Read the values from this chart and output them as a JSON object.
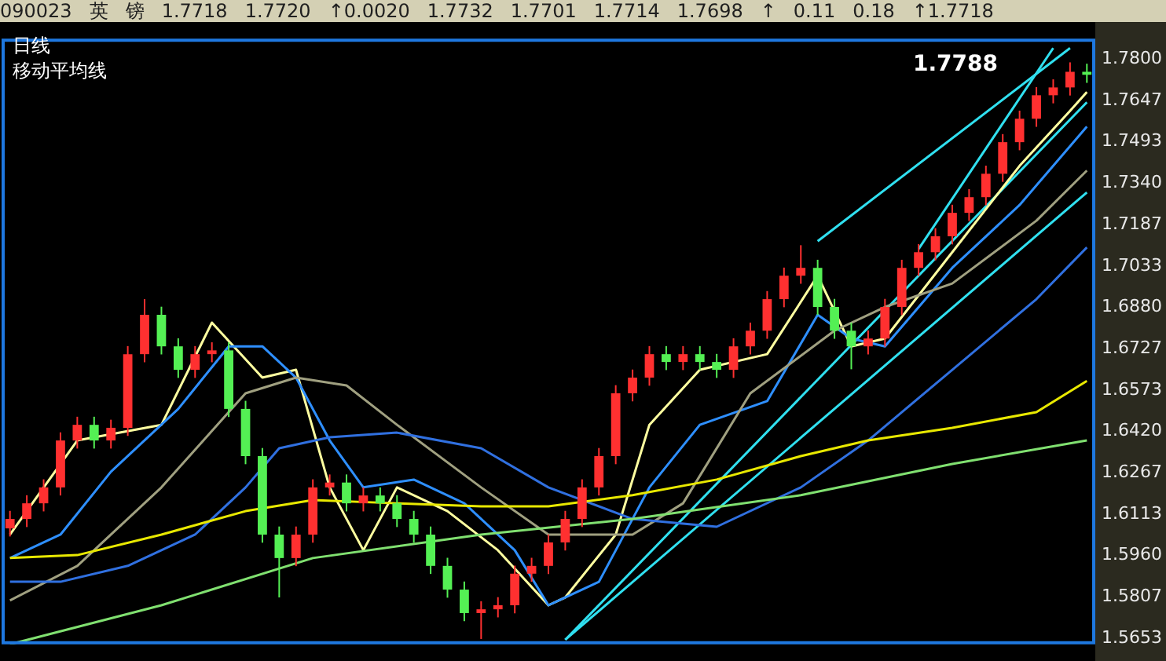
{
  "chart_data": {
    "type": "candlestick",
    "title": "日线",
    "subtitle": "移动平均线",
    "annotations": [
      "090023",
      "英",
      "镑",
      "1.7718",
      "1.7720",
      "↑0.0020",
      "1.7732",
      "1.7701",
      "1.7714",
      "1.7698",
      "↑",
      "0.11",
      "0.18",
      "↑1.7718",
      "1.7788"
    ],
    "categories": [
      null,
      null,
      null,
      null,
      null,
      null,
      null,
      null,
      null,
      null,
      null,
      null,
      null,
      null,
      null,
      null,
      null,
      null,
      null,
      null,
      null,
      null,
      null,
      null,
      null,
      null,
      null,
      null,
      null,
      null,
      null,
      null,
      null,
      null,
      null,
      null,
      null,
      null,
      null,
      null,
      null,
      null,
      null,
      null,
      null,
      null,
      null,
      null,
      null,
      null,
      null,
      null,
      null,
      null,
      null,
      null,
      null,
      null,
      null,
      null,
      null,
      null,
      null,
      null,
      null
    ],
    "ohlc": [
      [
        1.606,
        1.6125,
        1.603,
        1.6095
      ],
      [
        1.6095,
        1.6183,
        1.6065,
        1.6153
      ],
      [
        1.6153,
        1.6242,
        1.6123,
        1.6212
      ],
      [
        1.6212,
        1.6416,
        1.6182,
        1.6386
      ],
      [
        1.6386,
        1.6474,
        1.6356,
        1.6444
      ],
      [
        1.6444,
        1.6474,
        1.6356,
        1.6386
      ],
      [
        1.6386,
        1.6463,
        1.6356,
        1.6433
      ],
      [
        1.6433,
        1.6736,
        1.6403,
        1.6706
      ],
      [
        1.6706,
        1.691,
        1.6676,
        1.6852
      ],
      [
        1.6852,
        1.6882,
        1.6705,
        1.6735
      ],
      [
        1.6735,
        1.6765,
        1.6618,
        1.6648
      ],
      [
        1.6648,
        1.6736,
        1.6618,
        1.6706
      ],
      [
        1.6706,
        1.675,
        1.6676,
        1.672
      ],
      [
        1.672,
        1.675,
        1.6473,
        1.6503
      ],
      [
        1.6503,
        1.6533,
        1.6298,
        1.6328
      ],
      [
        1.6328,
        1.6358,
        1.6007,
        1.6037
      ],
      [
        1.6037,
        1.6067,
        1.5804,
        1.595
      ],
      [
        1.595,
        1.6067,
        1.592,
        1.6037
      ],
      [
        1.6037,
        1.6242,
        1.6007,
        1.6212
      ],
      [
        1.6212,
        1.626,
        1.6182,
        1.623
      ],
      [
        1.623,
        1.626,
        1.6123,
        1.6153
      ],
      [
        1.6153,
        1.6212,
        1.6123,
        1.6182
      ],
      [
        1.6182,
        1.6212,
        1.6123,
        1.6153
      ],
      [
        1.6153,
        1.6183,
        1.6065,
        1.6095
      ],
      [
        1.6095,
        1.6125,
        1.6007,
        1.6037
      ],
      [
        1.6037,
        1.6067,
        1.5891,
        1.5921
      ],
      [
        1.5921,
        1.5951,
        1.5803,
        1.5833
      ],
      [
        1.5833,
        1.5863,
        1.5716,
        1.5746
      ],
      [
        1.5746,
        1.579,
        1.565,
        1.576
      ],
      [
        1.576,
        1.5805,
        1.573,
        1.5775
      ],
      [
        1.5775,
        1.5922,
        1.5745,
        1.5892
      ],
      [
        1.5892,
        1.5951,
        1.5862,
        1.5921
      ],
      [
        1.5921,
        1.6038,
        1.5891,
        1.6008
      ],
      [
        1.6008,
        1.6125,
        1.5978,
        1.6095
      ],
      [
        1.6095,
        1.6242,
        1.6065,
        1.6212
      ],
      [
        1.6212,
        1.6358,
        1.6182,
        1.6328
      ],
      [
        1.6328,
        1.6591,
        1.6298,
        1.6561
      ],
      [
        1.6561,
        1.6649,
        1.6531,
        1.6619
      ],
      [
        1.6619,
        1.6736,
        1.6589,
        1.6706
      ],
      [
        1.6706,
        1.6736,
        1.6647,
        1.6677
      ],
      [
        1.6677,
        1.6736,
        1.6647,
        1.6706
      ],
      [
        1.6706,
        1.6736,
        1.6647,
        1.6677
      ],
      [
        1.6677,
        1.6707,
        1.6618,
        1.6648
      ],
      [
        1.6648,
        1.6765,
        1.6618,
        1.6735
      ],
      [
        1.6735,
        1.6823,
        1.6705,
        1.6793
      ],
      [
        1.6793,
        1.694,
        1.6763,
        1.691
      ],
      [
        1.691,
        1.7027,
        1.688,
        1.6997
      ],
      [
        1.6997,
        1.711,
        1.6967,
        1.7026
      ],
      [
        1.7026,
        1.7056,
        1.6851,
        1.6881
      ],
      [
        1.6881,
        1.6911,
        1.6763,
        1.6793
      ],
      [
        1.6793,
        1.6823,
        1.665,
        1.6735
      ],
      [
        1.6735,
        1.6794,
        1.6705,
        1.6764
      ],
      [
        1.6764,
        1.6911,
        1.6734,
        1.6881
      ],
      [
        1.6881,
        1.7056,
        1.6851,
        1.7026
      ],
      [
        1.7026,
        1.7114,
        1.6996,
        1.7084
      ],
      [
        1.7084,
        1.7173,
        1.7054,
        1.7143
      ],
      [
        1.7143,
        1.726,
        1.7113,
        1.723
      ],
      [
        1.723,
        1.7318,
        1.72,
        1.7288
      ],
      [
        1.7288,
        1.7405,
        1.7258,
        1.7375
      ],
      [
        1.7375,
        1.7522,
        1.7345,
        1.7492
      ],
      [
        1.7492,
        1.7609,
        1.7462,
        1.7579
      ],
      [
        1.7579,
        1.7696,
        1.7549,
        1.7666
      ],
      [
        1.7666,
        1.7725,
        1.7636,
        1.7695
      ],
      [
        1.7695,
        1.7788,
        1.7665,
        1.7753
      ],
      [
        1.7753,
        1.7783,
        1.7712,
        1.7742
      ]
    ],
    "colors": [
      "#ff3030",
      "#ff3030",
      "#ff3030",
      "#ff3030",
      "#ff3030",
      "#54f054",
      "#ff3030",
      "#ff3030",
      "#ff3030",
      "#54f054",
      "#54f054",
      "#ff3030",
      "#ff3030",
      "#54f054",
      "#54f054",
      "#54f054",
      "#54f054",
      "#ff3030",
      "#ff3030",
      "#ff3030",
      "#54f054",
      "#ff3030",
      "#54f054",
      "#54f054",
      "#54f054",
      "#54f054",
      "#54f054",
      "#54f054",
      "#ff3030",
      "#ff3030",
      "#ff3030",
      "#ff3030",
      "#ff3030",
      "#ff3030",
      "#ff3030",
      "#ff3030",
      "#ff3030",
      "#ff3030",
      "#ff3030",
      "#54f054",
      "#ff3030",
      "#54f054",
      "#54f054",
      "#ff3030",
      "#ff3030",
      "#ff3030",
      "#ff3030",
      "#ff3030",
      "#54f054",
      "#54f054",
      "#54f054",
      "#ff3030",
      "#ff3030",
      "#ff3030",
      "#ff3030",
      "#ff3030",
      "#ff3030",
      "#ff3030",
      "#ff3030",
      "#ff3030",
      "#ff3030",
      "#ff3030",
      "#ff3030",
      "#ff3030",
      "#54f054"
    ],
    "series": [
      {
        "type": "line",
        "color": "#80e070",
        "values": [
          1.563,
          null,
          null,
          null,
          null,
          null,
          null,
          null,
          null,
          1.5775,
          null,
          null,
          null,
          null,
          null,
          null,
          null,
          null,
          1.595,
          null,
          null,
          null,
          null,
          null,
          null,
          null,
          null,
          null,
          1.6037,
          null,
          null,
          null,
          null,
          null,
          null,
          null,
          null,
          1.6095,
          null,
          null,
          null,
          null,
          null,
          null,
          null,
          null,
          null,
          1.6183,
          null,
          null,
          null,
          null,
          null,
          null,
          null,
          null,
          1.6299,
          null,
          null,
          null,
          null,
          null,
          null,
          null,
          1.6386
        ]
      },
      {
        "type": "line",
        "color": "#e8e800",
        "values": [
          1.595,
          null,
          null,
          null,
          1.5961,
          null,
          null,
          null,
          null,
          1.6037,
          null,
          null,
          null,
          null,
          1.6124,
          null,
          null,
          null,
          1.6165,
          null,
          null,
          null,
          null,
          1.6153,
          null,
          null,
          null,
          null,
          1.6142,
          null,
          null,
          null,
          1.6142,
          null,
          null,
          null,
          null,
          1.6183,
          null,
          null,
          null,
          null,
          1.6241,
          null,
          null,
          null,
          null,
          1.6328,
          null,
          null,
          null,
          1.6386,
          null,
          null,
          null,
          null,
          1.6433,
          null,
          null,
          null,
          null,
          1.6491,
          null,
          null,
          1.6607
        ]
      },
      {
        "type": "line",
        "color": "#3070e0",
        "values": [
          1.5862,
          null,
          null,
          1.5862,
          null,
          null,
          null,
          1.5921,
          null,
          null,
          null,
          1.6037,
          null,
          null,
          1.6212,
          null,
          1.6357,
          null,
          null,
          1.6398,
          null,
          null,
          null,
          1.6415,
          null,
          null,
          null,
          null,
          1.6357,
          null,
          null,
          null,
          1.6212,
          null,
          null,
          null,
          null,
          1.6095,
          null,
          null,
          null,
          null,
          1.6066,
          null,
          null,
          null,
          null,
          1.6212,
          null,
          null,
          null,
          1.6386,
          null,
          null,
          null,
          null,
          1.6648,
          null,
          null,
          null,
          null,
          1.691,
          null,
          null,
          1.7102
        ]
      },
      {
        "type": "line",
        "color": "#a0a080",
        "values": [
          1.5793,
          null,
          null,
          null,
          1.5921,
          null,
          null,
          null,
          null,
          1.6212,
          null,
          null,
          null,
          null,
          1.6561,
          null,
          null,
          1.6619,
          null,
          null,
          1.659,
          null,
          null,
          1.6444,
          null,
          null,
          null,
          null,
          1.6212,
          null,
          null,
          null,
          1.6037,
          null,
          null,
          null,
          null,
          1.6037,
          null,
          null,
          1.6153,
          null,
          null,
          null,
          1.6561,
          null,
          null,
          null,
          null,
          1.6793,
          null,
          null,
          1.6881,
          null,
          null,
          null,
          1.6968,
          null,
          null,
          null,
          null,
          1.7201,
          null,
          null,
          1.7387
        ]
      },
      {
        "type": "line",
        "color": "#2e8fff",
        "values": [
          1.595,
          null,
          null,
          1.6037,
          null,
          null,
          1.627,
          null,
          null,
          null,
          1.6503,
          null,
          null,
          1.6735,
          null,
          1.6735,
          null,
          1.6619,
          null,
          1.6386,
          null,
          1.6212,
          null,
          null,
          1.6241,
          null,
          null,
          1.6153,
          null,
          null,
          1.5979,
          null,
          1.5775,
          null,
          null,
          1.5862,
          null,
          null,
          1.6212,
          null,
          null,
          1.6444,
          null,
          null,
          null,
          1.6532,
          null,
          null,
          1.6852,
          null,
          1.6764,
          null,
          1.6735,
          null,
          null,
          null,
          1.7026,
          null,
          null,
          null,
          1.7259,
          null,
          null,
          null,
          1.755
        ]
      },
      {
        "type": "line",
        "color": "#ffffa0",
        "values": [
          1.6037,
          null,
          null,
          null,
          1.6386,
          null,
          null,
          null,
          null,
          1.6444,
          null,
          null,
          1.6823,
          null,
          null,
          1.6619,
          null,
          1.6648,
          null,
          1.6212,
          null,
          1.5979,
          null,
          1.6212,
          null,
          null,
          1.6124,
          null,
          null,
          1.5979,
          null,
          null,
          1.5775,
          1.5804,
          null,
          null,
          1.6037,
          null,
          1.6444,
          null,
          null,
          1.6648,
          null,
          null,
          null,
          1.6706,
          null,
          null,
          1.6997,
          null,
          1.6735,
          null,
          1.6764,
          null,
          null,
          null,
          1.7084,
          null,
          null,
          null,
          1.7404,
          null,
          null,
          1.7608,
          1.7678
        ]
      },
      {
        "type": "line",
        "color": "#30e0f0",
        "values": [
          null,
          null,
          null,
          null,
          null,
          null,
          null,
          null,
          null,
          null,
          null,
          null,
          null,
          null,
          null,
          null,
          null,
          null,
          null,
          null,
          null,
          null,
          null,
          null,
          null,
          null,
          null,
          null,
          null,
          null,
          null,
          null,
          null,
          1.5647,
          null,
          null,
          null,
          null,
          null,
          null,
          null,
          null,
          null,
          null,
          null,
          null,
          null,
          null,
          null,
          null,
          null,
          null,
          null,
          null,
          null,
          null,
          null,
          null,
          null,
          null,
          null,
          null,
          null,
          null,
          1.7306
        ]
      },
      {
        "type": "line",
        "color": "#30e0f0",
        "values": [
          null,
          null,
          null,
          null,
          null,
          null,
          null,
          null,
          null,
          null,
          null,
          null,
          null,
          null,
          null,
          null,
          null,
          null,
          null,
          null,
          null,
          null,
          null,
          null,
          null,
          null,
          null,
          null,
          null,
          null,
          null,
          null,
          null,
          1.5647,
          null,
          null,
          null,
          null,
          null,
          null,
          null,
          null,
          null,
          null,
          null,
          null,
          null,
          null,
          null,
          null,
          null,
          null,
          null,
          null,
          null,
          null,
          null,
          null,
          null,
          null,
          null,
          null,
          null,
          null,
          1.764
        ]
      },
      {
        "type": "line",
        "color": "#30e0f0",
        "values": [
          null,
          null,
          null,
          null,
          null,
          null,
          null,
          null,
          null,
          null,
          null,
          null,
          null,
          null,
          null,
          null,
          null,
          null,
          null,
          null,
          null,
          null,
          null,
          null,
          null,
          null,
          null,
          null,
          null,
          null,
          null,
          null,
          null,
          null,
          null,
          null,
          null,
          null,
          null,
          null,
          null,
          null,
          null,
          null,
          null,
          null,
          null,
          null,
          1.7125,
          null,
          null,
          null,
          null,
          null,
          null,
          null,
          null,
          null,
          null,
          null,
          null,
          null,
          null,
          1.7841,
          null
        ]
      },
      {
        "type": "line",
        "color": "#30e0f0",
        "values": [
          null,
          null,
          null,
          null,
          null,
          null,
          null,
          null,
          null,
          null,
          null,
          null,
          null,
          null,
          null,
          null,
          null,
          null,
          null,
          null,
          null,
          null,
          null,
          null,
          null,
          null,
          null,
          null,
          null,
          null,
          null,
          null,
          null,
          null,
          null,
          null,
          null,
          null,
          null,
          null,
          null,
          null,
          null,
          null,
          null,
          null,
          null,
          null,
          null,
          null,
          null,
          null,
          null,
          null,
          1.7096,
          null,
          null,
          null,
          null,
          null,
          null,
          null,
          1.7841,
          null,
          null
        ]
      }
    ],
    "ylim": [
      1.563,
      1.7876
    ],
    "yticks": [
      {
        "value": 1.78,
        "label": "1.7800"
      },
      {
        "value": 1.7647,
        "label": "1.7647"
      },
      {
        "value": 1.7493,
        "label": "1.7493"
      },
      {
        "value": 1.734,
        "label": "1.7340"
      },
      {
        "value": 1.7187,
        "label": "1.7187"
      },
      {
        "value": 1.7033,
        "label": "1.7033"
      },
      {
        "value": 1.688,
        "label": "1.6880"
      },
      {
        "value": 1.6727,
        "label": "1.6727"
      },
      {
        "value": 1.6573,
        "label": "1.6573"
      },
      {
        "value": 1.642,
        "label": "1.6420"
      },
      {
        "value": 1.6267,
        "label": "1.6267"
      },
      {
        "value": 1.6113,
        "label": "1.6113"
      },
      {
        "value": 1.596,
        "label": "1.5960"
      },
      {
        "value": 1.5807,
        "label": "1.5807"
      },
      {
        "value": 1.5653,
        "label": "1.5653"
      }
    ],
    "tick_labels": "y",
    "grid": false,
    "legend": false
  }
}
